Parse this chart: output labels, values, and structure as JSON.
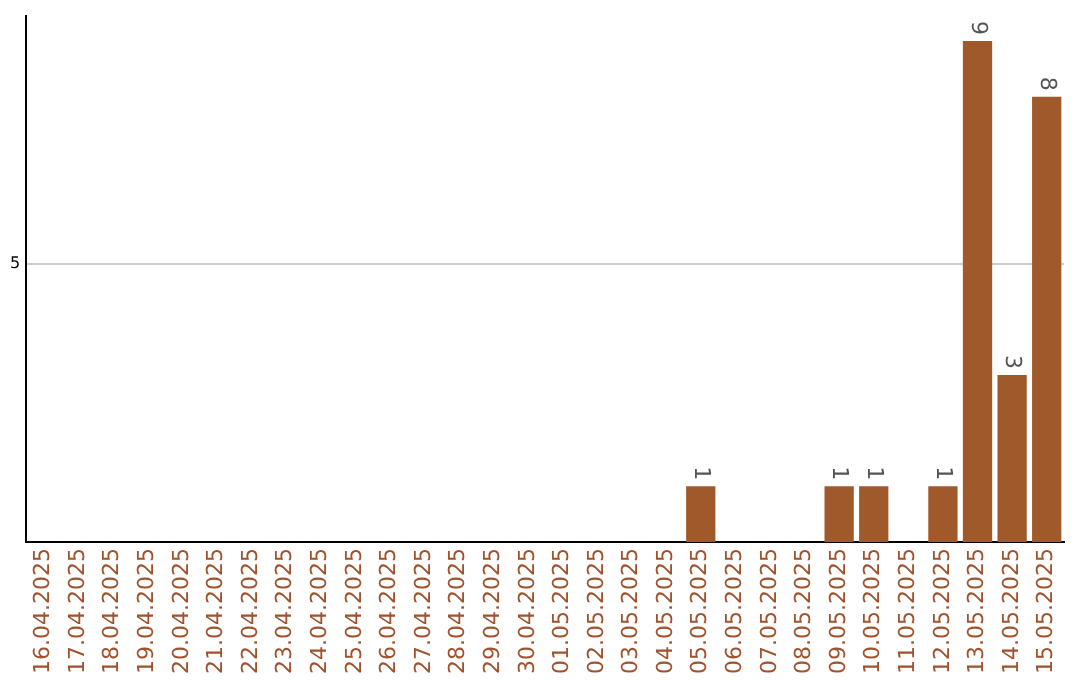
{
  "chart_data": {
    "type": "bar",
    "categories": [
      "16.04.2025",
      "17.04.2025",
      "18.04.2025",
      "19.04.2025",
      "20.04.2025",
      "21.04.2025",
      "22.04.2025",
      "23.04.2025",
      "24.04.2025",
      "25.04.2025",
      "26.04.2025",
      "27.04.2025",
      "28.04.2025",
      "29.04.2025",
      "30.04.2025",
      "01.05.2025",
      "02.05.2025",
      "03.05.2025",
      "04.05.2025",
      "05.05.2025",
      "06.05.2025",
      "07.05.2025",
      "08.05.2025",
      "09.05.2025",
      "10.05.2025",
      "11.05.2025",
      "12.05.2025",
      "13.05.2025",
      "14.05.2025",
      "15.05.2025"
    ],
    "values": [
      null,
      null,
      null,
      null,
      null,
      null,
      null,
      null,
      null,
      null,
      null,
      null,
      null,
      null,
      null,
      null,
      null,
      null,
      null,
      1,
      null,
      null,
      null,
      1,
      1,
      null,
      1,
      9,
      3,
      8
    ],
    "color": "#a0592a",
    "ylim": [
      0,
      9.45
    ],
    "yticks": [
      5
    ],
    "grid": "y",
    "data_labels": true,
    "legend": false
  }
}
